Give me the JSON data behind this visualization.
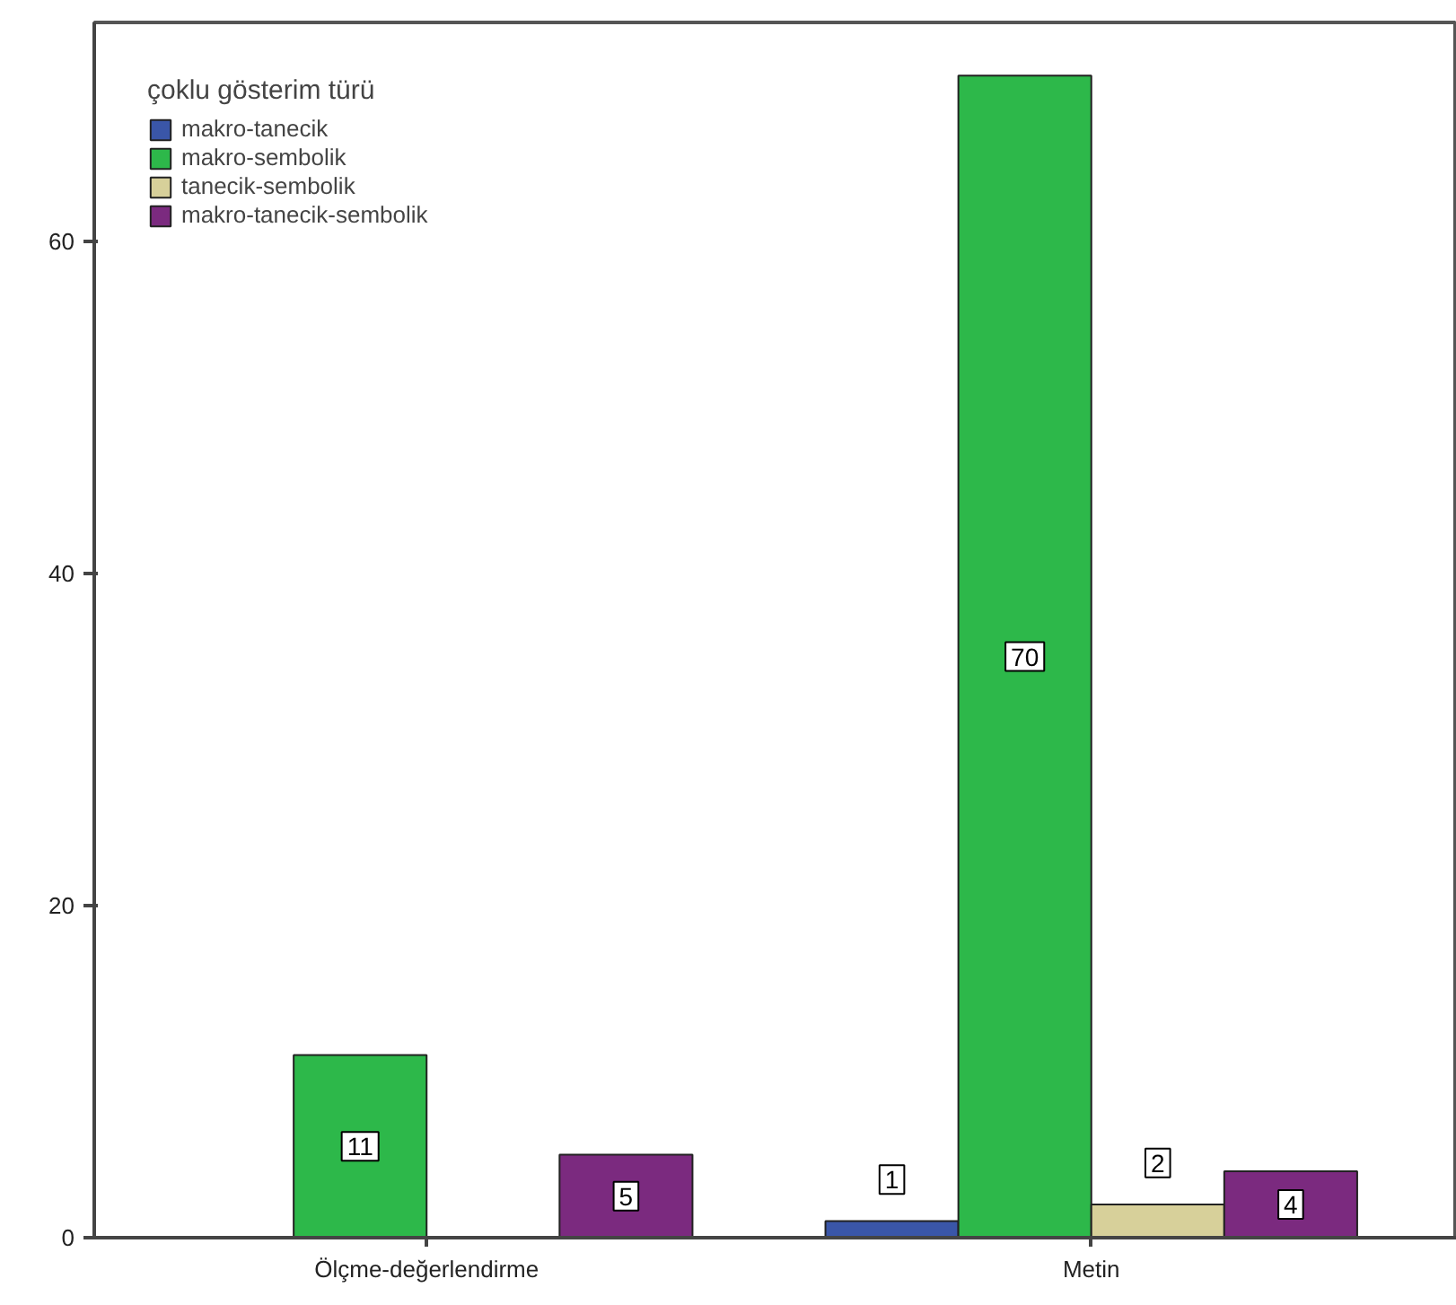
{
  "chart_data": {
    "type": "bar",
    "categories": [
      "Ölçme-değerlendirme",
      "Metin"
    ],
    "series": [
      {
        "name": "makro-tanecik",
        "color": "#3a56a8",
        "values": [
          null,
          1
        ]
      },
      {
        "name": "makro-sembolik",
        "color": "#2db84a",
        "values": [
          11,
          70
        ]
      },
      {
        "name": "tanecik-sembolik",
        "color": "#d7d09a",
        "values": [
          null,
          2
        ]
      },
      {
        "name": "makro-tanecik-sembolik",
        "color": "#7b2a7f",
        "values": [
          5,
          4
        ]
      }
    ],
    "legend_title": "çoklu gösterim türü",
    "legend": "top left",
    "data_labels": true,
    "grid": false,
    "ylim": [
      0,
      73.2
    ],
    "yticks": [
      0,
      20,
      40,
      60
    ]
  }
}
